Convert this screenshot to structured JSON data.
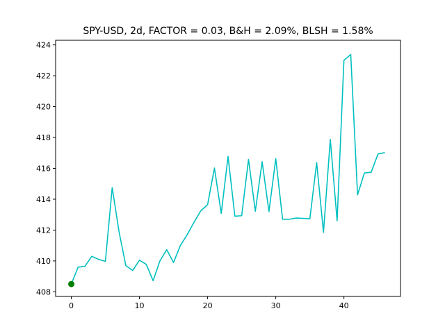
{
  "chart_data": {
    "type": "line",
    "title": "SPY-USD, 2d, FACTOR = 0.03, B&H = 2.09%, BLSH = 1.58%",
    "xlabel": "",
    "ylabel": "",
    "xlim": [
      -2.3,
      48.3
    ],
    "ylim": [
      407.7,
      424.3
    ],
    "x_ticks": [
      0,
      10,
      20,
      30,
      40
    ],
    "y_ticks": [
      408,
      410,
      412,
      414,
      416,
      418,
      420,
      422,
      424
    ],
    "grid": false,
    "colors": {
      "line": "#00bfbf",
      "marker": "#008000",
      "axes": "#000000",
      "background": "#ffffff"
    },
    "series": [
      {
        "x": [
          0,
          1,
          2,
          3,
          4,
          5,
          6,
          7,
          8,
          9,
          10,
          11,
          12,
          13,
          14,
          15,
          16,
          17,
          18,
          19,
          20,
          21,
          22,
          23,
          24,
          25,
          26,
          27,
          28,
          29,
          30,
          31,
          32,
          33,
          34,
          35,
          36,
          37,
          38,
          39,
          40,
          41,
          42,
          43,
          44,
          45,
          46
        ],
        "values": [
          408.5,
          409.6,
          409.65,
          410.3,
          410.1,
          409.97,
          414.75,
          411.9,
          409.7,
          409.38,
          410.05,
          409.78,
          408.72,
          410.0,
          410.73,
          409.9,
          411.0,
          411.7,
          412.5,
          413.25,
          413.65,
          416.02,
          413.08,
          416.77,
          412.9,
          412.93,
          416.58,
          413.22,
          416.43,
          413.2,
          416.63,
          412.7,
          412.7,
          412.78,
          412.76,
          412.73,
          416.38,
          411.85,
          417.88,
          412.6,
          423.0,
          423.38,
          414.28,
          415.7,
          415.75,
          416.93,
          417.02
        ]
      }
    ],
    "markers": [
      {
        "x": 0,
        "y": 408.5
      }
    ]
  }
}
